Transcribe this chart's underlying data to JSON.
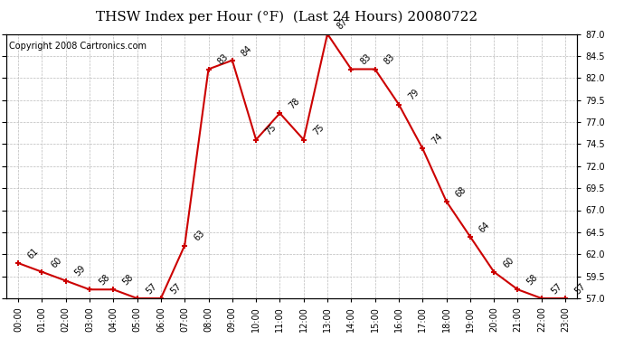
{
  "title": "THSW Index per Hour (°F)  (Last 24 Hours) 20080722",
  "copyright": "Copyright 2008 Cartronics.com",
  "hours": [
    "00:00",
    "01:00",
    "02:00",
    "03:00",
    "04:00",
    "05:00",
    "06:00",
    "07:00",
    "08:00",
    "09:00",
    "10:00",
    "11:00",
    "12:00",
    "13:00",
    "14:00",
    "15:00",
    "16:00",
    "17:00",
    "18:00",
    "19:00",
    "20:00",
    "21:00",
    "22:00",
    "23:00"
  ],
  "values": [
    61,
    60,
    59,
    58,
    58,
    57,
    57,
    63,
    83,
    84,
    75,
    78,
    75,
    87,
    83,
    83,
    79,
    74,
    68,
    64,
    60,
    58,
    57,
    57
  ],
  "ylim_min": 57.0,
  "ylim_max": 87.0,
  "yticks": [
    57.0,
    59.5,
    62.0,
    64.5,
    67.0,
    69.5,
    72.0,
    74.5,
    77.0,
    79.5,
    82.0,
    84.5,
    87.0
  ],
  "line_color": "#cc0000",
  "marker_color": "#cc0000",
  "bg_color": "#ffffff",
  "plot_bg_color": "#ffffff",
  "grid_color": "#bbbbbb",
  "title_fontsize": 11,
  "copyright_fontsize": 7,
  "label_fontsize": 7,
  "annotation_fontsize": 7
}
